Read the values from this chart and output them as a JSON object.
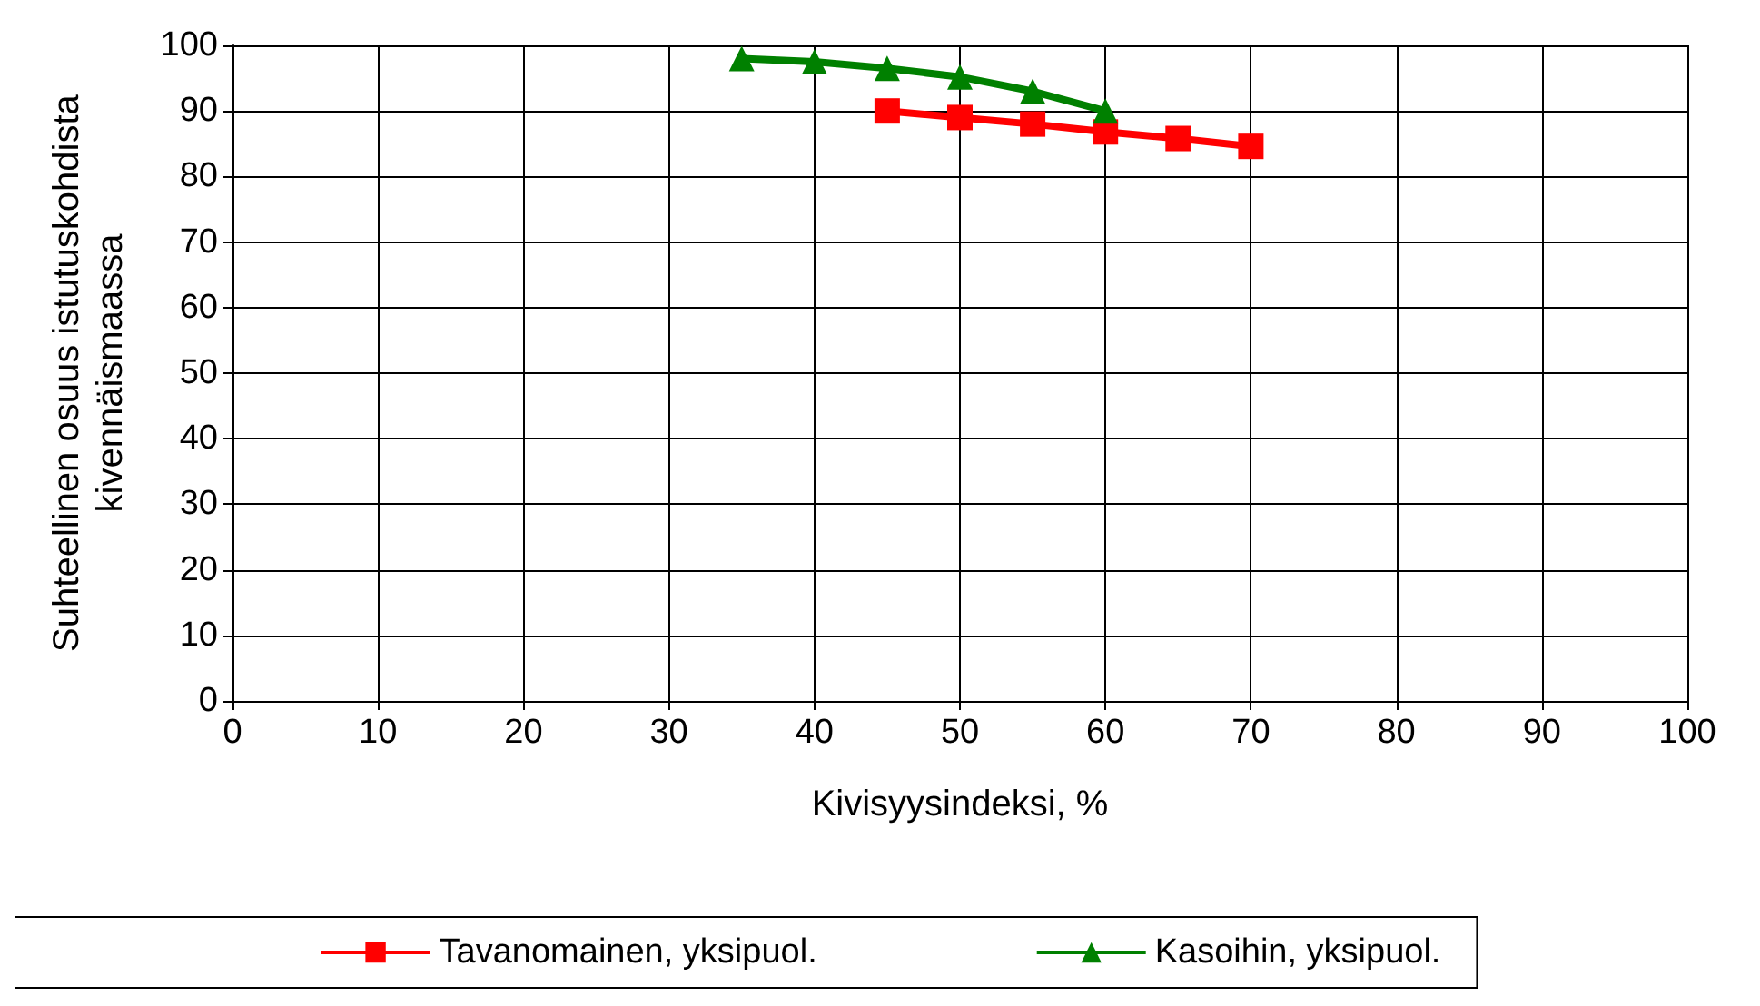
{
  "chart_data": {
    "type": "line",
    "xlabel": "Kivisyysindeksi, %",
    "ylabel": "Suhteellinen osuus istutuskohdista\nkivennäismaassa",
    "series": [
      {
        "name": "Tavanomainen, yksipuol.",
        "color": "#ff0000",
        "marker": "square",
        "x": [
          45,
          50,
          55,
          60,
          65,
          70
        ],
        "values": [
          90,
          89,
          88,
          86.8,
          85.8,
          84.6
        ]
      },
      {
        "name": "Kasoihin, yksipuol.",
        "color": "#008000",
        "marker": "triangle",
        "x": [
          35,
          40,
          45,
          50,
          55,
          60
        ],
        "values": [
          98,
          97.5,
          96.5,
          95.2,
          93,
          90
        ]
      }
    ],
    "xlim": [
      0,
      100
    ],
    "xticks": [
      0,
      10,
      20,
      30,
      40,
      50,
      60,
      70,
      80,
      90,
      100
    ],
    "ylim": [
      0,
      100
    ],
    "yticks": [
      0,
      10,
      20,
      30,
      40,
      50,
      60,
      70,
      80,
      90,
      100
    ],
    "grid": true,
    "legend": "bottom",
    "line_style": "solid"
  }
}
